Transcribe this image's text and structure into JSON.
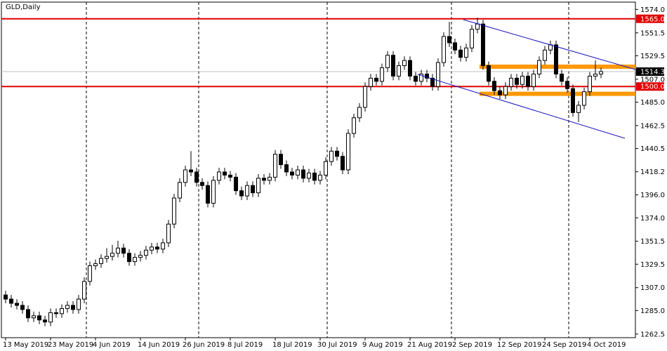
{
  "chart_data": {
    "type": "candlestick",
    "title": "GLD,Daily",
    "categories": [
      "13 May 2019",
      null,
      null,
      null,
      null,
      null,
      null,
      null,
      "23 May 2019",
      null,
      null,
      null,
      null,
      null,
      null,
      null,
      "4 Jun 2019",
      null,
      null,
      null,
      null,
      null,
      null,
      null,
      "14 Jun 2019",
      null,
      null,
      null,
      null,
      null,
      null,
      null,
      "26 Jun 2019",
      null,
      null,
      null,
      null,
      null,
      null,
      null,
      "8 Jul 2019",
      null,
      null,
      null,
      null,
      null,
      null,
      null,
      "18 Jul 2019",
      null,
      null,
      null,
      null,
      null,
      null,
      null,
      "30 Jul 2019",
      null,
      null,
      null,
      null,
      null,
      null,
      null,
      "9 Aug 2019",
      null,
      null,
      null,
      null,
      null,
      null,
      null,
      "21 Aug 2019",
      null,
      null,
      null,
      null,
      null,
      null,
      null,
      "2 Sep 2019",
      null,
      null,
      null,
      null,
      null,
      null,
      null,
      "12 Sep 2019",
      null,
      null,
      null,
      null,
      null,
      null,
      null,
      "24 Sep 2019",
      null,
      null,
      null,
      null,
      null,
      null,
      null,
      "4 Oct 2019",
      null,
      null
    ],
    "open": [
      1300,
      1296,
      1292,
      1290,
      1286,
      1278,
      1280,
      1276,
      1274,
      1283,
      1282,
      1287,
      1290,
      1286,
      1296,
      1313,
      1328,
      1330,
      1335,
      1337,
      1340,
      1345,
      1340,
      1332,
      1336,
      1338,
      1343,
      1346,
      1344,
      1350,
      1368,
      1393,
      1408,
      1420,
      1418,
      1408,
      1405,
      1388,
      1410,
      1418,
      1415,
      1413,
      1400,
      1395,
      1405,
      1398,
      1412,
      1410,
      1413,
      1435,
      1425,
      1418,
      1415,
      1420,
      1412,
      1417,
      1410,
      1415,
      1428,
      1438,
      1433,
      1420,
      1455,
      1470,
      1480,
      1500,
      1508,
      1505,
      1518,
      1530,
      1510,
      1520,
      1525,
      1510,
      1505,
      1512,
      1508,
      1500,
      1523,
      1548,
      1542,
      1535,
      1528,
      1537,
      1555,
      1560,
      1520,
      1505,
      1496,
      1492,
      1500,
      1508,
      1502,
      1510,
      1500,
      1512,
      1525,
      1535,
      1540,
      1512,
      1505,
      1498,
      1475,
      1482,
      1495,
      1510,
      1512
    ],
    "high": [
      1304,
      1300,
      1296,
      1294,
      1290,
      1284,
      1284,
      1280,
      1287,
      1287,
      1291,
      1294,
      1294,
      1300,
      1317,
      1332,
      1334,
      1339,
      1345,
      1348,
      1352,
      1349,
      1344,
      1340,
      1342,
      1347,
      1350,
      1350,
      1354,
      1372,
      1397,
      1412,
      1424,
      1438,
      1422,
      1412,
      1409,
      1414,
      1422,
      1422,
      1419,
      1417,
      1404,
      1409,
      1409,
      1416,
      1416,
      1417,
      1439,
      1439,
      1429,
      1422,
      1424,
      1424,
      1421,
      1421,
      1419,
      1432,
      1442,
      1442,
      1437,
      1459,
      1474,
      1484,
      1504,
      1512,
      1512,
      1522,
      1534,
      1534,
      1524,
      1529,
      1529,
      1514,
      1516,
      1516,
      1512,
      1527,
      1552,
      1562,
      1546,
      1539,
      1541,
      1559,
      1566,
      1564,
      1524,
      1509,
      1500,
      1504,
      1512,
      1512,
      1514,
      1514,
      1516,
      1529,
      1539,
      1544,
      1544,
      1516,
      1509,
      1502,
      1486,
      1499,
      1514,
      1525,
      1518
    ],
    "low": [
      1292,
      1288,
      1286,
      1282,
      1274,
      1274,
      1272,
      1270,
      1270,
      1278,
      1278,
      1283,
      1282,
      1282,
      1292,
      1309,
      1324,
      1326,
      1331,
      1333,
      1336,
      1336,
      1328,
      1328,
      1332,
      1334,
      1339,
      1340,
      1340,
      1346,
      1364,
      1389,
      1404,
      1414,
      1404,
      1401,
      1384,
      1384,
      1406,
      1411,
      1409,
      1396,
      1391,
      1391,
      1394,
      1394,
      1406,
      1406,
      1409,
      1421,
      1414,
      1411,
      1411,
      1408,
      1408,
      1406,
      1406,
      1411,
      1424,
      1429,
      1416,
      1416,
      1451,
      1466,
      1476,
      1496,
      1501,
      1501,
      1514,
      1506,
      1506,
      1516,
      1506,
      1501,
      1501,
      1504,
      1496,
      1496,
      1519,
      1538,
      1531,
      1524,
      1524,
      1533,
      1551,
      1516,
      1501,
      1492,
      1488,
      1488,
      1496,
      1498,
      1498,
      1496,
      1496,
      1508,
      1521,
      1531,
      1508,
      1501,
      1494,
      1471,
      1466,
      1478,
      1491,
      1506,
      1508
    ],
    "close": [
      1296,
      1292,
      1290,
      1286,
      1278,
      1280,
      1276,
      1274,
      1283,
      1282,
      1287,
      1290,
      1286,
      1296,
      1313,
      1328,
      1330,
      1335,
      1337,
      1340,
      1345,
      1340,
      1332,
      1336,
      1338,
      1343,
      1346,
      1344,
      1350,
      1368,
      1393,
      1408,
      1420,
      1418,
      1408,
      1405,
      1388,
      1410,
      1418,
      1415,
      1413,
      1400,
      1395,
      1405,
      1398,
      1412,
      1410,
      1413,
      1435,
      1425,
      1418,
      1415,
      1420,
      1412,
      1417,
      1410,
      1415,
      1428,
      1438,
      1433,
      1420,
      1455,
      1470,
      1480,
      1500,
      1508,
      1505,
      1518,
      1530,
      1510,
      1520,
      1525,
      1510,
      1505,
      1512,
      1508,
      1500,
      1523,
      1548,
      1542,
      1535,
      1528,
      1537,
      1555,
      1560,
      1520,
      1505,
      1496,
      1492,
      1500,
      1508,
      1502,
      1510,
      1500,
      1512,
      1525,
      1535,
      1540,
      1512,
      1505,
      1498,
      1475,
      1482,
      1495,
      1510,
      1512,
      1514.3
    ],
    "ylim": [
      1259,
      1581
    ],
    "yticks": [
      {
        "value": 1574,
        "label": "1574.0"
      },
      {
        "value": 1551.5,
        "label": "1551.5"
      },
      {
        "value": 1529.5,
        "label": "1529.5"
      },
      {
        "value": 1507,
        "label": "1507.0"
      },
      {
        "value": 1485,
        "label": "1485.0"
      },
      {
        "value": 1462.5,
        "label": "1462.5"
      },
      {
        "value": 1440.5,
        "label": "1440.5"
      },
      {
        "value": 1418.2,
        "label": "1418.2"
      },
      {
        "value": 1396,
        "label": "1396.0"
      },
      {
        "value": 1374,
        "label": "1374.0"
      },
      {
        "value": 1351.5,
        "label": "1351.5"
      },
      {
        "value": 1329.5,
        "label": "1329.5"
      },
      {
        "value": 1307,
        "label": "1307.0"
      },
      {
        "value": 1285,
        "label": "1285.0"
      },
      {
        "value": 1262.5,
        "label": "1262.5"
      }
    ],
    "levels": [
      {
        "value": 1565,
        "label": "1565.0",
        "color": "#e00000"
      },
      {
        "value": 1500,
        "label": "1500.0",
        "color": "#e00000"
      }
    ],
    "zones": [
      {
        "value": 1519,
        "color": "#ff9900"
      },
      {
        "value": 1493,
        "color": "#ff9900"
      }
    ],
    "last_price": 1514.3
  }
}
